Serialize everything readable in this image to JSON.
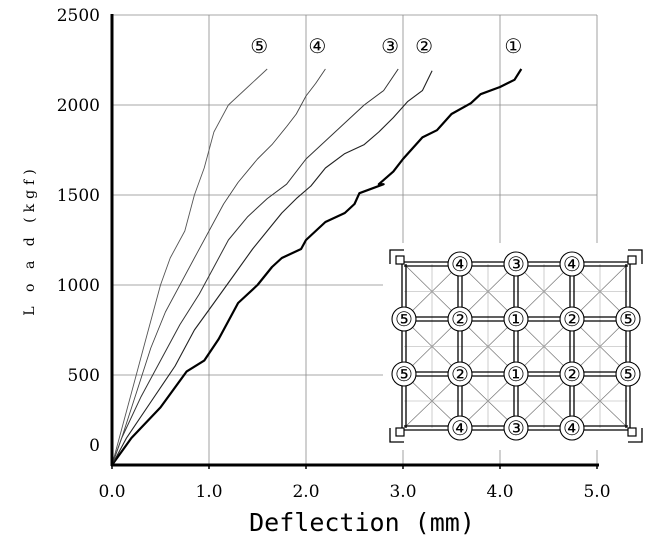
{
  "chart_data": {
    "type": "line",
    "xlabel": "Deflection (mm)",
    "ylabel": "L o a d  (kgf)",
    "xlim": [
      0,
      5
    ],
    "ylim": [
      0,
      2500
    ],
    "x_ticks": [
      "0.0",
      "1.0",
      "2.0",
      "3.0",
      "4.0",
      "5.0"
    ],
    "y_ticks": [
      "0",
      "500",
      "1000",
      "1500",
      "2000",
      "2500"
    ],
    "grid": true,
    "series": [
      {
        "name": "①",
        "color": "#000000",
        "width": 2.2,
        "x": [
          0,
          0.2,
          0.5,
          0.77,
          0.95,
          1.1,
          1.3,
          1.5,
          1.65,
          1.75,
          1.95,
          2.0,
          2.2,
          2.4,
          2.5,
          2.55,
          2.8,
          2.75,
          2.9,
          3.0,
          3.2,
          3.35,
          3.5,
          3.7,
          3.8,
          4.0,
          4.15,
          4.22
        ],
        "y": [
          0,
          150,
          320,
          520,
          580,
          700,
          900,
          1000,
          1100,
          1150,
          1200,
          1250,
          1350,
          1400,
          1450,
          1510,
          1560,
          1560,
          1630,
          1700,
          1820,
          1860,
          1950,
          2010,
          2060,
          2100,
          2140,
          2200
        ]
      },
      {
        "name": "②",
        "color": "#222222",
        "width": 1.1,
        "x": [
          0,
          0.15,
          0.4,
          0.65,
          0.85,
          1.05,
          1.25,
          1.45,
          1.6,
          1.75,
          1.9,
          2.05,
          2.2,
          2.4,
          2.6,
          2.75,
          2.9,
          3.05,
          3.2,
          3.3
        ],
        "y": [
          0,
          150,
          350,
          550,
          750,
          900,
          1050,
          1200,
          1300,
          1400,
          1480,
          1550,
          1650,
          1730,
          1780,
          1850,
          1930,
          2020,
          2080,
          2190
        ]
      },
      {
        "name": "③",
        "color": "#333333",
        "width": 1.0,
        "x": [
          0,
          0.1,
          0.3,
          0.5,
          0.7,
          0.9,
          1.05,
          1.2,
          1.4,
          1.6,
          1.8,
          2.0,
          2.2,
          2.4,
          2.6,
          2.8,
          2.95
        ],
        "y": [
          0,
          150,
          380,
          580,
          780,
          950,
          1100,
          1250,
          1380,
          1480,
          1560,
          1700,
          1800,
          1900,
          2000,
          2080,
          2200
        ]
      },
      {
        "name": "④",
        "color": "#444444",
        "width": 0.9,
        "x": [
          0,
          0.1,
          0.25,
          0.4,
          0.55,
          0.7,
          0.85,
          1.0,
          1.15,
          1.3,
          1.5,
          1.65,
          1.8,
          1.9,
          2.0,
          2.1,
          2.2
        ],
        "y": [
          0,
          150,
          400,
          650,
          850,
          1000,
          1150,
          1300,
          1450,
          1570,
          1700,
          1780,
          1880,
          1950,
          2050,
          2120,
          2200
        ]
      },
      {
        "name": "⑤",
        "color": "#555555",
        "width": 0.9,
        "x": [
          0,
          0.1,
          0.2,
          0.35,
          0.5,
          0.6,
          0.75,
          0.85,
          0.95,
          1.05,
          1.2,
          1.3,
          1.4,
          1.5,
          1.6
        ],
        "y": [
          0,
          200,
          400,
          700,
          1000,
          1150,
          1300,
          1500,
          1650,
          1850,
          2000,
          2050,
          2100,
          2150,
          2200
        ]
      }
    ],
    "inset": {
      "row_top": [
        "④",
        "③",
        "④"
      ],
      "row_2": [
        "⑤",
        "②",
        "①",
        "②",
        "⑤"
      ],
      "row_3": [
        "⑤",
        "②",
        "①",
        "②",
        "⑤"
      ],
      "row_bottom": [
        "④",
        "③",
        "④"
      ]
    }
  }
}
